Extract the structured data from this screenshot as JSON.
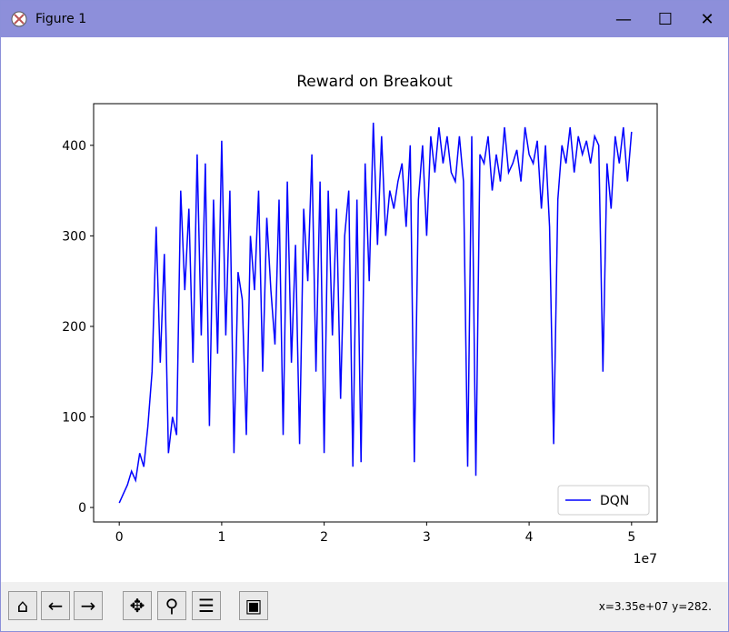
{
  "window": {
    "title": "Figure 1",
    "status": "x=3.35e+07 y=282."
  },
  "chart_data": {
    "type": "line",
    "title": "Reward on Breakout",
    "x": [
      0,
      400000,
      800000,
      1200000,
      1600000,
      2000000,
      2400000,
      2800000,
      3200000,
      3600000,
      4000000,
      4400000,
      4800000,
      5200000,
      5600000,
      6000000,
      6400000,
      6800000,
      7200000,
      7600000,
      8000000,
      8400000,
      8800000,
      9200000,
      9600000,
      10000000,
      10400000,
      10800000,
      11200000,
      11600000,
      12000000,
      12400000,
      12800000,
      13200000,
      13600000,
      14000000,
      14400000,
      14800000,
      15200000,
      15600000,
      16000000,
      16400000,
      16800000,
      17200000,
      17600000,
      18000000,
      18400000,
      18800000,
      19200000,
      19600000,
      20000000,
      20400000,
      20800000,
      21200000,
      21600000,
      22000000,
      22400000,
      22800000,
      23200000,
      23600000,
      24000000,
      24400000,
      24800000,
      25200000,
      25600000,
      26000000,
      26400000,
      26800000,
      27200000,
      27600000,
      28000000,
      28400000,
      28800000,
      29200000,
      29600000,
      30000000,
      30400000,
      30800000,
      31200000,
      31600000,
      32000000,
      32400000,
      32800000,
      33200000,
      33600000,
      34000000,
      34400000,
      34800000,
      35200000,
      35600000,
      36000000,
      36400000,
      36800000,
      37200000,
      37600000,
      38000000,
      38400000,
      38800000,
      39200000,
      39600000,
      40000000,
      40400000,
      40800000,
      41200000,
      41600000,
      42000000,
      42400000,
      42800000,
      43200000,
      43600000,
      44000000,
      44400000,
      44800000,
      45200000,
      45600000,
      46000000,
      46400000,
      46800000,
      47200000,
      47600000,
      48000000,
      48400000,
      48800000,
      49200000,
      49600000,
      50000000
    ],
    "series": [
      {
        "name": "DQN",
        "color": "#0000ff",
        "values": [
          5,
          15,
          25,
          40,
          30,
          60,
          45,
          90,
          150,
          310,
          160,
          280,
          60,
          100,
          80,
          350,
          240,
          330,
          160,
          390,
          190,
          380,
          90,
          340,
          170,
          405,
          190,
          350,
          60,
          260,
          230,
          80,
          300,
          240,
          350,
          150,
          320,
          240,
          180,
          340,
          80,
          360,
          160,
          290,
          70,
          330,
          250,
          390,
          150,
          360,
          60,
          350,
          190,
          330,
          120,
          300,
          350,
          45,
          340,
          50,
          380,
          250,
          425,
          290,
          410,
          300,
          350,
          330,
          360,
          380,
          310,
          400,
          50,
          340,
          400,
          300,
          410,
          370,
          420,
          380,
          410,
          370,
          360,
          410,
          360,
          45,
          410,
          35,
          390,
          380,
          410,
          350,
          390,
          360,
          420,
          370,
          380,
          395,
          360,
          420,
          390,
          380,
          405,
          330,
          400,
          310,
          70,
          340,
          400,
          380,
          420,
          370,
          410,
          390,
          405,
          380,
          410,
          400,
          150,
          380,
          330,
          410,
          380,
          420,
          360,
          415
        ]
      }
    ],
    "xlim": [
      -2500000,
      52500000
    ],
    "xticks": [
      0,
      {
        "value": 10000000,
        "label": "1"
      },
      {
        "value": 20000000,
        "label": "2"
      },
      {
        "value": 30000000,
        "label": "3"
      },
      {
        "value": 40000000,
        "label": "4"
      },
      {
        "value": 50000000,
        "label": "5"
      }
    ],
    "x_offset_label": "1e7",
    "ylim": [
      -16,
      446
    ],
    "yticks": [
      0,
      100,
      200,
      300,
      400
    ],
    "grid": false,
    "legend": "lower right"
  }
}
